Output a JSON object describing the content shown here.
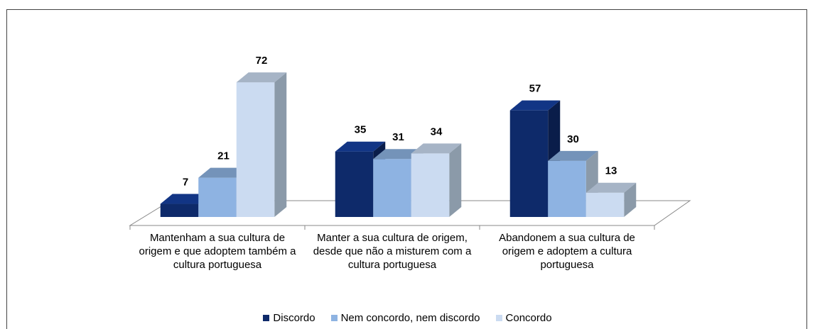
{
  "chart_data": {
    "type": "bar3d",
    "categories": [
      "Mantenham a sua cultura de origem e que adoptem também a cultura portuguesa",
      "Manter a sua cultura de origem, desde que não a misturem com a cultura portuguesa",
      "Abandonem a sua cultura de origem e adoptem a cultura portuguesa"
    ],
    "series": [
      {
        "name": "Discordo",
        "color": "#0e2a6a",
        "values": [
          7,
          35,
          57
        ]
      },
      {
        "name": "Nem concordo, nem discordo",
        "color": "#8eb3e2",
        "values": [
          21,
          31,
          30
        ]
      },
      {
        "name": "Concordo",
        "color": "#cbdbf1",
        "values": [
          72,
          34,
          13
        ]
      }
    ],
    "ylim": [
      0,
      80
    ],
    "legend": "bottom"
  }
}
